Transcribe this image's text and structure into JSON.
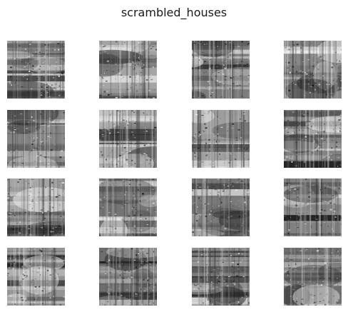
{
  "figure": {
    "title": "scrambled_houses"
  },
  "tiles": [
    {
      "id": 1,
      "variant": 0
    },
    {
      "id": 2,
      "variant": 1
    },
    {
      "id": 3,
      "variant": 2
    },
    {
      "id": 4,
      "variant": 3
    },
    {
      "id": 5,
      "variant": 4
    },
    {
      "id": 6,
      "variant": 5
    },
    {
      "id": 7,
      "variant": 6
    },
    {
      "id": 8,
      "variant": 7
    },
    {
      "id": 9,
      "variant": 8
    },
    {
      "id": 10,
      "variant": 9
    },
    {
      "id": 11,
      "variant": 10
    },
    {
      "id": 12,
      "variant": 11
    },
    {
      "id": 13,
      "variant": 12
    },
    {
      "id": 14,
      "variant": 13
    },
    {
      "id": 15,
      "variant": 14
    },
    {
      "id": 16,
      "variant": 15
    }
  ],
  "grid": {
    "rows": 4,
    "cols": 4
  }
}
